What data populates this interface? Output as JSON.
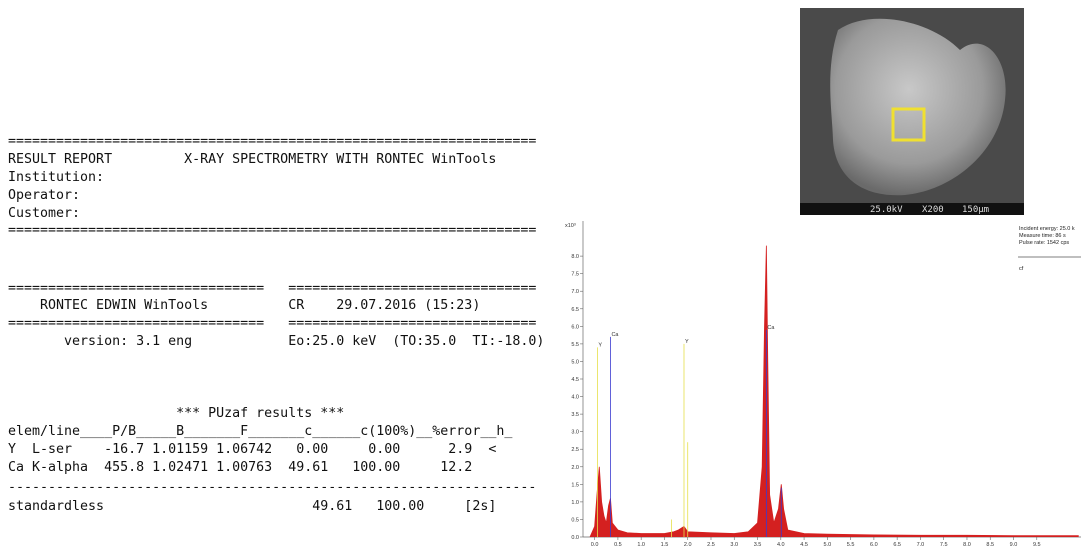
{
  "report": {
    "lines": [
      "==================================================================",
      "RESULT REPORT         X-RAY SPECTROMETRY WITH RONTEC WinTools",
      "Institution:",
      "Operator:",
      "Customer:",
      "==================================================================",
      "================================   ===============================",
      "    RONTEC EDWIN WinTools          CR    29.07.2016 (15:23)",
      "================================   ===============================",
      "       version: 3.1 eng            Eo:25.0 keV  (TO:35.0  TI:-18.0)",
      "                     *** PUzaf results ***",
      "elem/line____P/B_____B_______F_______c______c(100%)__%error__h_",
      "Y  L-ser    -16.7 1.01159 1.06742   0.00     0.00      2.9  <",
      "Ca K-alpha  455.8 1.02471 1.00763  49.61   100.00     12.2",
      "------------------------------------------------------------------",
      "standardless                          49.61   100.00     [2s]"
    ]
  },
  "image": {
    "voltage": "25.0kV",
    "magnification": "X200",
    "scale": "150µm"
  },
  "chart_data": {
    "type": "area",
    "color": "#d42020",
    "y_unit_label": "x10³",
    "info": [
      "Incident energy: 25.0 k",
      "Measure time: 86 s",
      "Pulse rate: 1542 cps",
      "cf"
    ],
    "x": [
      -0.1,
      0.0,
      0.05,
      0.1,
      0.15,
      0.2,
      0.25,
      0.3,
      0.34,
      0.38,
      0.5,
      0.7,
      1.0,
      1.5,
      1.7,
      1.8,
      1.92,
      2.0,
      2.5,
      3.0,
      3.3,
      3.5,
      3.6,
      3.65,
      3.69,
      3.72,
      3.76,
      3.85,
      3.95,
      4.01,
      4.06,
      4.15,
      4.5,
      5,
      6,
      7,
      8,
      9,
      10,
      10.4
    ],
    "values": [
      0,
      0.3,
      1.2,
      2.0,
      1.0,
      0.6,
      0.4,
      0.9,
      1.1,
      0.4,
      0.2,
      0.12,
      0.1,
      0.1,
      0.15,
      0.2,
      0.3,
      0.15,
      0.12,
      0.1,
      0.15,
      0.4,
      2.0,
      6.0,
      8.3,
      5.0,
      1.2,
      0.4,
      0.8,
      1.5,
      0.8,
      0.2,
      0.1,
      0.08,
      0.06,
      0.05,
      0.05,
      0.04,
      0.04,
      0.04
    ],
    "markers": [
      {
        "label": "Y",
        "color": "#e6e04a",
        "x": 0.06,
        "height": 5.4
      },
      {
        "label": "Ca",
        "color": "#3a3ad0",
        "x": 0.34,
        "height": 5.7
      },
      {
        "color": "#e6e04a",
        "x": 1.65,
        "height": 0.5
      },
      {
        "label": "Y",
        "color": "#e6e04a",
        "x": 1.92,
        "height": 5.5
      },
      {
        "color": "#e6e04a",
        "x": 2.0,
        "height": 2.7
      },
      {
        "label": "Ca",
        "color": "#3a3ad0",
        "x": 3.69,
        "height": 5.9
      },
      {
        "color": "#3a3ad0",
        "x": 4.01,
        "height": 1.4
      }
    ],
    "xlim": [
      -0.25,
      10.45
    ],
    "ylim": [
      0,
      9
    ],
    "xticks": [
      {
        "value": 0,
        "label": "0.0"
      },
      0.5,
      {
        "value": 1,
        "label": "1.0"
      },
      1.5,
      {
        "value": 2,
        "label": "2.0"
      },
      2.5,
      {
        "value": 3,
        "label": "3.0"
      },
      3.5,
      {
        "value": 4,
        "label": "4.0"
      },
      4.5,
      {
        "value": 5,
        "label": "5.0"
      },
      5.5,
      {
        "value": 6,
        "label": "6.0"
      },
      6.5,
      {
        "value": 7,
        "label": "7.0"
      },
      7.5,
      {
        "value": 8,
        "label": "8.0"
      },
      8.5,
      {
        "value": 9,
        "label": "9.0"
      },
      9.5
    ],
    "yticks": [
      {
        "value": 0,
        "label": "0.0"
      },
      0.5,
      {
        "value": 1,
        "label": "1.0"
      },
      1.5,
      {
        "value": 2,
        "label": "2.0"
      },
      2.5,
      {
        "value": 3,
        "label": "3.0"
      },
      3.5,
      {
        "value": 4,
        "label": "4.0"
      },
      4.5,
      {
        "value": 5,
        "label": "5.0"
      },
      5.5,
      {
        "value": 6,
        "label": "6.0"
      },
      6.5,
      {
        "value": 7,
        "label": "7.0"
      },
      7.5,
      {
        "value": 8,
        "label": "8.0"
      }
    ]
  }
}
